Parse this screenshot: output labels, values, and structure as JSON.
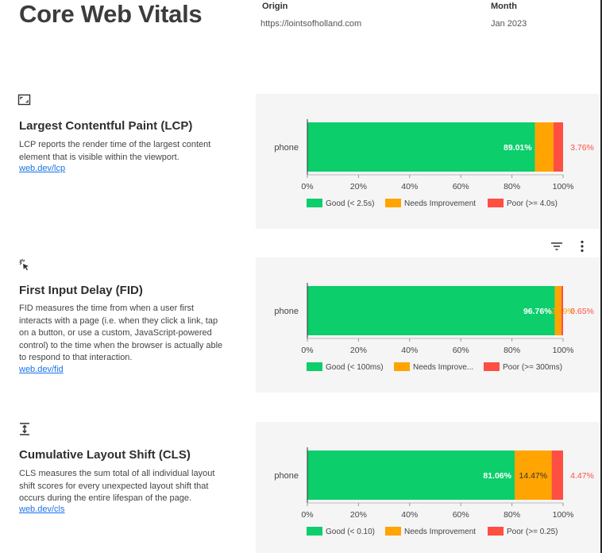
{
  "header": {
    "title": "Core Web Vitals",
    "origin_label": "Origin",
    "origin_value": "https://lointsofholland.com",
    "month_label": "Month",
    "month_value": "Jan 2023"
  },
  "colors": {
    "good": "#0cce6b",
    "needs": "#ffa400",
    "poor": "#ff4e42",
    "panel_bg": "#f5f5f5",
    "link": "#1a73e8"
  },
  "metrics": [
    {
      "icon": "lcp-image-icon",
      "title": "Largest Contentful Paint (LCP)",
      "description": "LCP reports the render time of the largest content element that is visible within the viewport.",
      "link": "web.dev/lcp"
    },
    {
      "icon": "fid-click-icon",
      "title": "First Input Delay (FID)",
      "description": "FID measures the time from when a user first interacts with a page (i.e. when they click a link, tap on a button, or use a custom, JavaScript-powered control) to the time when the browser is actually able to respond to that interaction.",
      "link": "web.dev/fid"
    },
    {
      "icon": "cls-shift-icon",
      "title": "Cumulative Layout Shift (CLS)",
      "description": "CLS measures the sum total of all individual layout shift scores for every unexpected layout shift that occurs during the entire lifespan of the page.",
      "link": "web.dev/cls"
    }
  ],
  "toolbar": {
    "filter_icon": "filter-icon",
    "more_icon": "more-vert-icon"
  },
  "chart_data": [
    {
      "type": "bar",
      "orientation": "horizontal-stacked",
      "categories": [
        "phone"
      ],
      "xlim": [
        0,
        100
      ],
      "x_ticks": [
        "0%",
        "20%",
        "40%",
        "60%",
        "80%",
        "100%"
      ],
      "series": [
        {
          "name": "Good (< 2.5s)",
          "values": [
            89.01
          ],
          "label": "89.01%",
          "color": "#0cce6b"
        },
        {
          "name": "Needs Improvement",
          "values": [
            7.23
          ],
          "label": "7.23%",
          "color": "#ffa400"
        },
        {
          "name": "Poor (>= 4.0s)",
          "values": [
            3.76
          ],
          "label": "3.76%",
          "color": "#ff4e42"
        }
      ],
      "legend": "bottom"
    },
    {
      "type": "bar",
      "orientation": "horizontal-stacked",
      "categories": [
        "phone"
      ],
      "xlim": [
        0,
        100
      ],
      "x_ticks": [
        "0%",
        "20%",
        "40%",
        "60%",
        "80%",
        "100%"
      ],
      "series": [
        {
          "name": "Good (< 100ms)",
          "values": [
            96.76
          ],
          "label": "96.76%",
          "color": "#0cce6b"
        },
        {
          "name": "Needs Improve...",
          "values": [
            2.59
          ],
          "label": "2.59%",
          "color": "#ffa400"
        },
        {
          "name": "Poor (>= 300ms)",
          "values": [
            0.65
          ],
          "label": "0.65%",
          "color": "#ff4e42"
        }
      ],
      "legend": "bottom"
    },
    {
      "type": "bar",
      "orientation": "horizontal-stacked",
      "categories": [
        "phone"
      ],
      "xlim": [
        0,
        100
      ],
      "x_ticks": [
        "0%",
        "20%",
        "40%",
        "60%",
        "80%",
        "100%"
      ],
      "series": [
        {
          "name": "Good (< 0.10)",
          "values": [
            81.06
          ],
          "label": "81.06%",
          "color": "#0cce6b"
        },
        {
          "name": "Needs Improvement",
          "values": [
            14.47
          ],
          "label": "14.47%",
          "color": "#ffa400"
        },
        {
          "name": "Poor (>= 0.25)",
          "values": [
            4.47
          ],
          "label": "4.47%",
          "color": "#ff4e42"
        }
      ],
      "legend": "bottom"
    }
  ]
}
